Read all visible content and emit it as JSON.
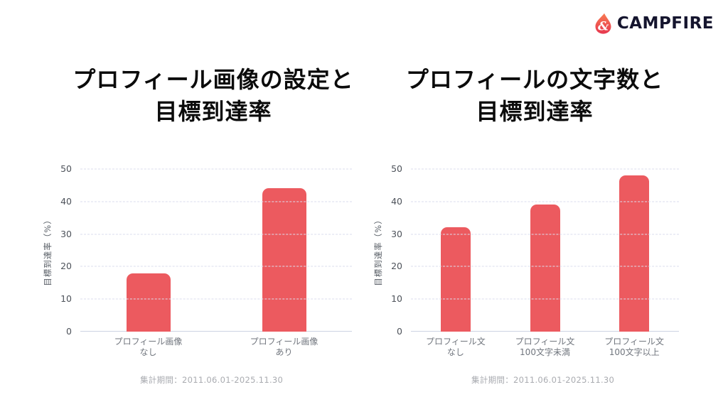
{
  "brand": {
    "wordmark": "CAMPFIRE",
    "icon": "flame-icon",
    "flame_color_top": "#F87B52",
    "flame_color_bottom": "#E7374F",
    "wordmark_color": "#15152e"
  },
  "chart_data": [
    {
      "type": "bar",
      "title": "プロフィール画像の設定と\n目標到達率",
      "title_lines": [
        "プロフィール画像の設定と",
        "目標到達率"
      ],
      "categories": [
        "プロフィール画像\nなし",
        "プロフィール画像\nあり"
      ],
      "values": [
        18,
        44
      ],
      "xlabel": "",
      "ylabel": "目標到達率（%）",
      "ylim": [
        0,
        50
      ],
      "yticks": [
        0,
        10,
        20,
        30,
        40,
        50
      ],
      "grid": "dashed-horizontal",
      "legend": "none",
      "bar_color": "#EC5A5F",
      "caption": "集計期間：2011.06.01-2025.11.30"
    },
    {
      "type": "bar",
      "title": "プロフィールの文字数と\n目標到達率",
      "title_lines": [
        "プロフィールの文字数と",
        "目標到達率"
      ],
      "categories": [
        "プロフィール文\nなし",
        "プロフィール文\n100文字未満",
        "プロフィール文\n100文字以上"
      ],
      "values": [
        32,
        39,
        48
      ],
      "xlabel": "",
      "ylabel": "目標到達率（%）",
      "ylim": [
        0,
        50
      ],
      "yticks": [
        0,
        10,
        20,
        30,
        40,
        50
      ],
      "grid": "dashed-horizontal",
      "legend": "none",
      "bar_color": "#EC5A5F",
      "caption": "集計期間：2011.06.01-2025.11.30"
    }
  ]
}
